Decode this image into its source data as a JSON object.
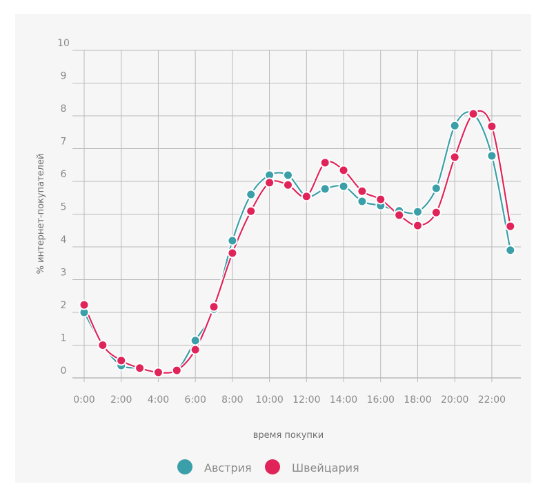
{
  "chart_data": {
    "type": "line",
    "title": "",
    "xlabel": "время покупки",
    "ylabel": "% интернет-покупателей",
    "ylim": [
      0,
      10
    ],
    "grid": true,
    "legend_position": "bottom-center",
    "x": [
      0,
      1,
      2,
      3,
      4,
      5,
      6,
      7,
      8,
      9,
      10,
      11,
      12,
      13,
      14,
      15,
      16,
      17,
      18,
      19,
      20,
      21,
      22,
      23
    ],
    "x_tick_labels": [
      "0:00",
      "2:00",
      "4:00",
      "6:00",
      "8:00",
      "10:00",
      "12:00",
      "14:00",
      "16:00",
      "18:00",
      "20:00",
      "22:00"
    ],
    "y_tick_labels": [
      "0",
      "1",
      "2",
      "3",
      "4",
      "5",
      "6",
      "7",
      "8",
      "9",
      "10"
    ],
    "series": [
      {
        "name": "Австрия",
        "color": "#3a9fa8",
        "values": [
          2.0,
          1.0,
          0.38,
          0.3,
          0.17,
          0.23,
          1.14,
          2.1,
          4.19,
          5.6,
          6.19,
          6.19,
          5.54,
          5.77,
          5.85,
          5.39,
          5.26,
          5.1,
          5.07,
          5.79,
          7.7,
          8.06,
          6.78,
          3.9
        ]
      },
      {
        "name": "Швейцария",
        "color": "#e0245a",
        "values": [
          2.23,
          1.0,
          0.53,
          0.3,
          0.17,
          0.23,
          0.86,
          2.17,
          3.81,
          5.09,
          5.96,
          5.89,
          5.54,
          6.57,
          6.34,
          5.7,
          5.45,
          4.97,
          4.65,
          5.05,
          6.74,
          8.06,
          7.68,
          4.63
        ]
      }
    ]
  }
}
